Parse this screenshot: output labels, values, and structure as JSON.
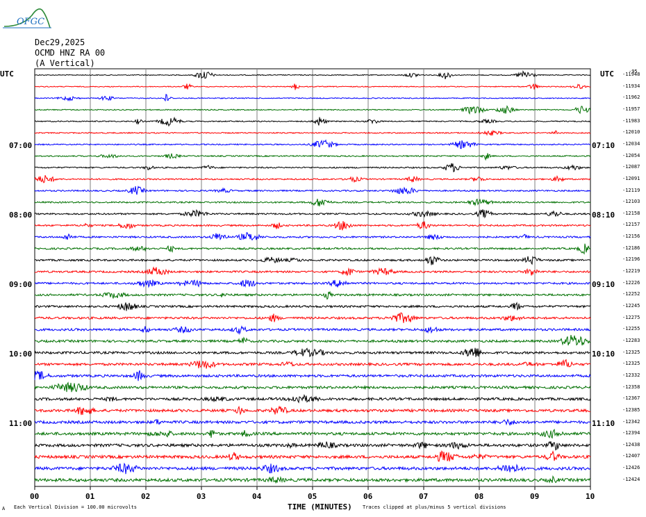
{
  "logo": {
    "text": "OFGC"
  },
  "header": {
    "date": "Dec29,2025",
    "station": "OCMD HNZ RA 00",
    "component": "(A Vertical)"
  },
  "left_axis": {
    "title": "UTC",
    "labels": [
      "07:00",
      "08:00",
      "09:00",
      "10:00",
      "11:00"
    ]
  },
  "right_axis": {
    "title": "UTC",
    "labels": [
      "07:10",
      "08:10",
      "09:10",
      "10:10",
      "11:10"
    ],
    "offsets_header": "-95",
    "offsets": [
      "-11948",
      "-11934",
      "-11962",
      "-11957",
      "-11983",
      "-12010",
      "-12034",
      "-12054",
      "-12087",
      "-12091",
      "-12119",
      "-12103",
      "-12158",
      "-12157",
      "-12156",
      "-12186",
      "-12196",
      "-12219",
      "-12226",
      "-12252",
      "-12245",
      "-12275",
      "-12255",
      "-12283",
      "-12325",
      "-12325",
      "-12332",
      "-12358",
      "-12367",
      "-12385",
      "-12342",
      "-12394",
      "-12438",
      "-12407",
      "-12426",
      "-12424"
    ]
  },
  "x_axis": {
    "title": "TIME (MINUTES)",
    "ticks": [
      "00",
      "01",
      "02",
      "03",
      "04",
      "05",
      "06",
      "07",
      "08",
      "09",
      "10"
    ]
  },
  "footer": {
    "left_mark": "A",
    "scale_note": "Each Vertical Division =  100.00 microvolts",
    "clip_note": "Traces clipped at plus/minus 5 vertical divisions"
  },
  "colors": {
    "trace_cycle": [
      "#000000",
      "#ff0000",
      "#0000ff",
      "#007000"
    ],
    "grid": "#7f7f7f",
    "logo": "#1e6fc0",
    "logo_green": "#2e8b3a"
  }
}
